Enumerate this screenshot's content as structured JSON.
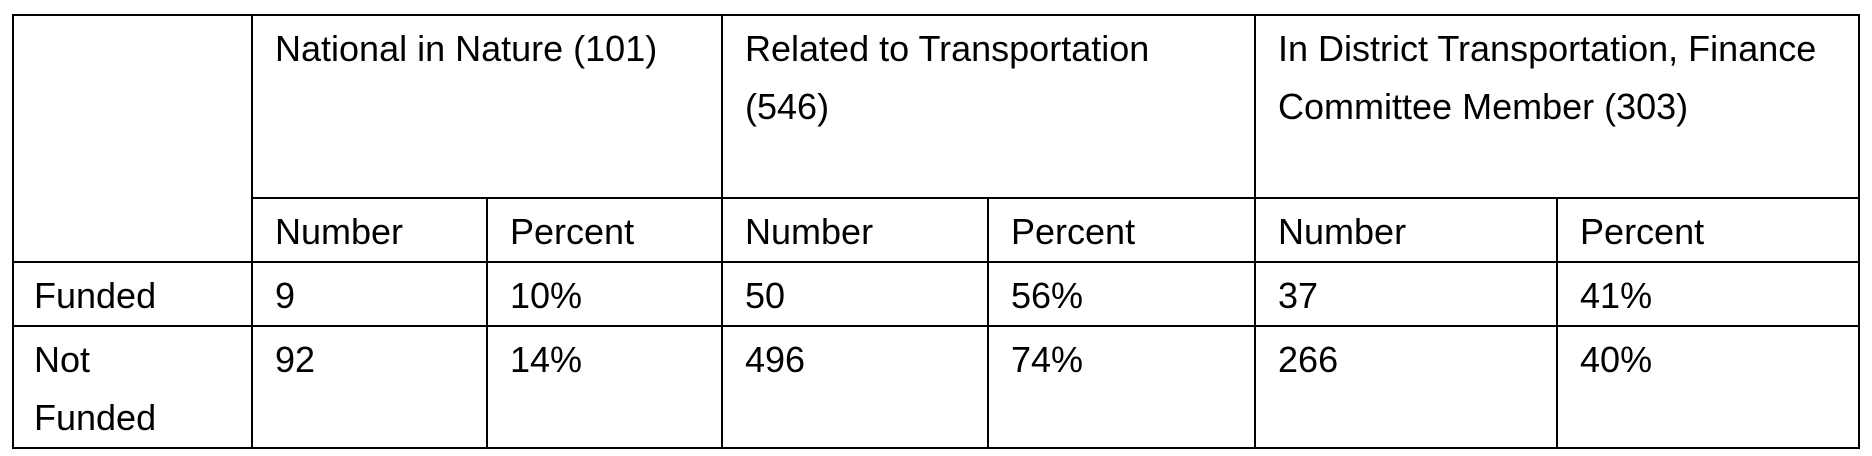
{
  "table": {
    "groups": [
      "National in Nature (101)",
      "Related to Transportation (546)",
      "In District Transportation, Finance Committee Member (303)"
    ],
    "subheaders": [
      "Number",
      "Percent",
      "Number",
      "Percent",
      "Number",
      "Percent"
    ],
    "rows": [
      [
        "Funded",
        "9",
        "10%",
        "50",
        "56%",
        "37",
        "41%"
      ],
      [
        "Not Funded",
        "92",
        "14%",
        "496",
        "74%",
        "266",
        "40%"
      ]
    ]
  }
}
